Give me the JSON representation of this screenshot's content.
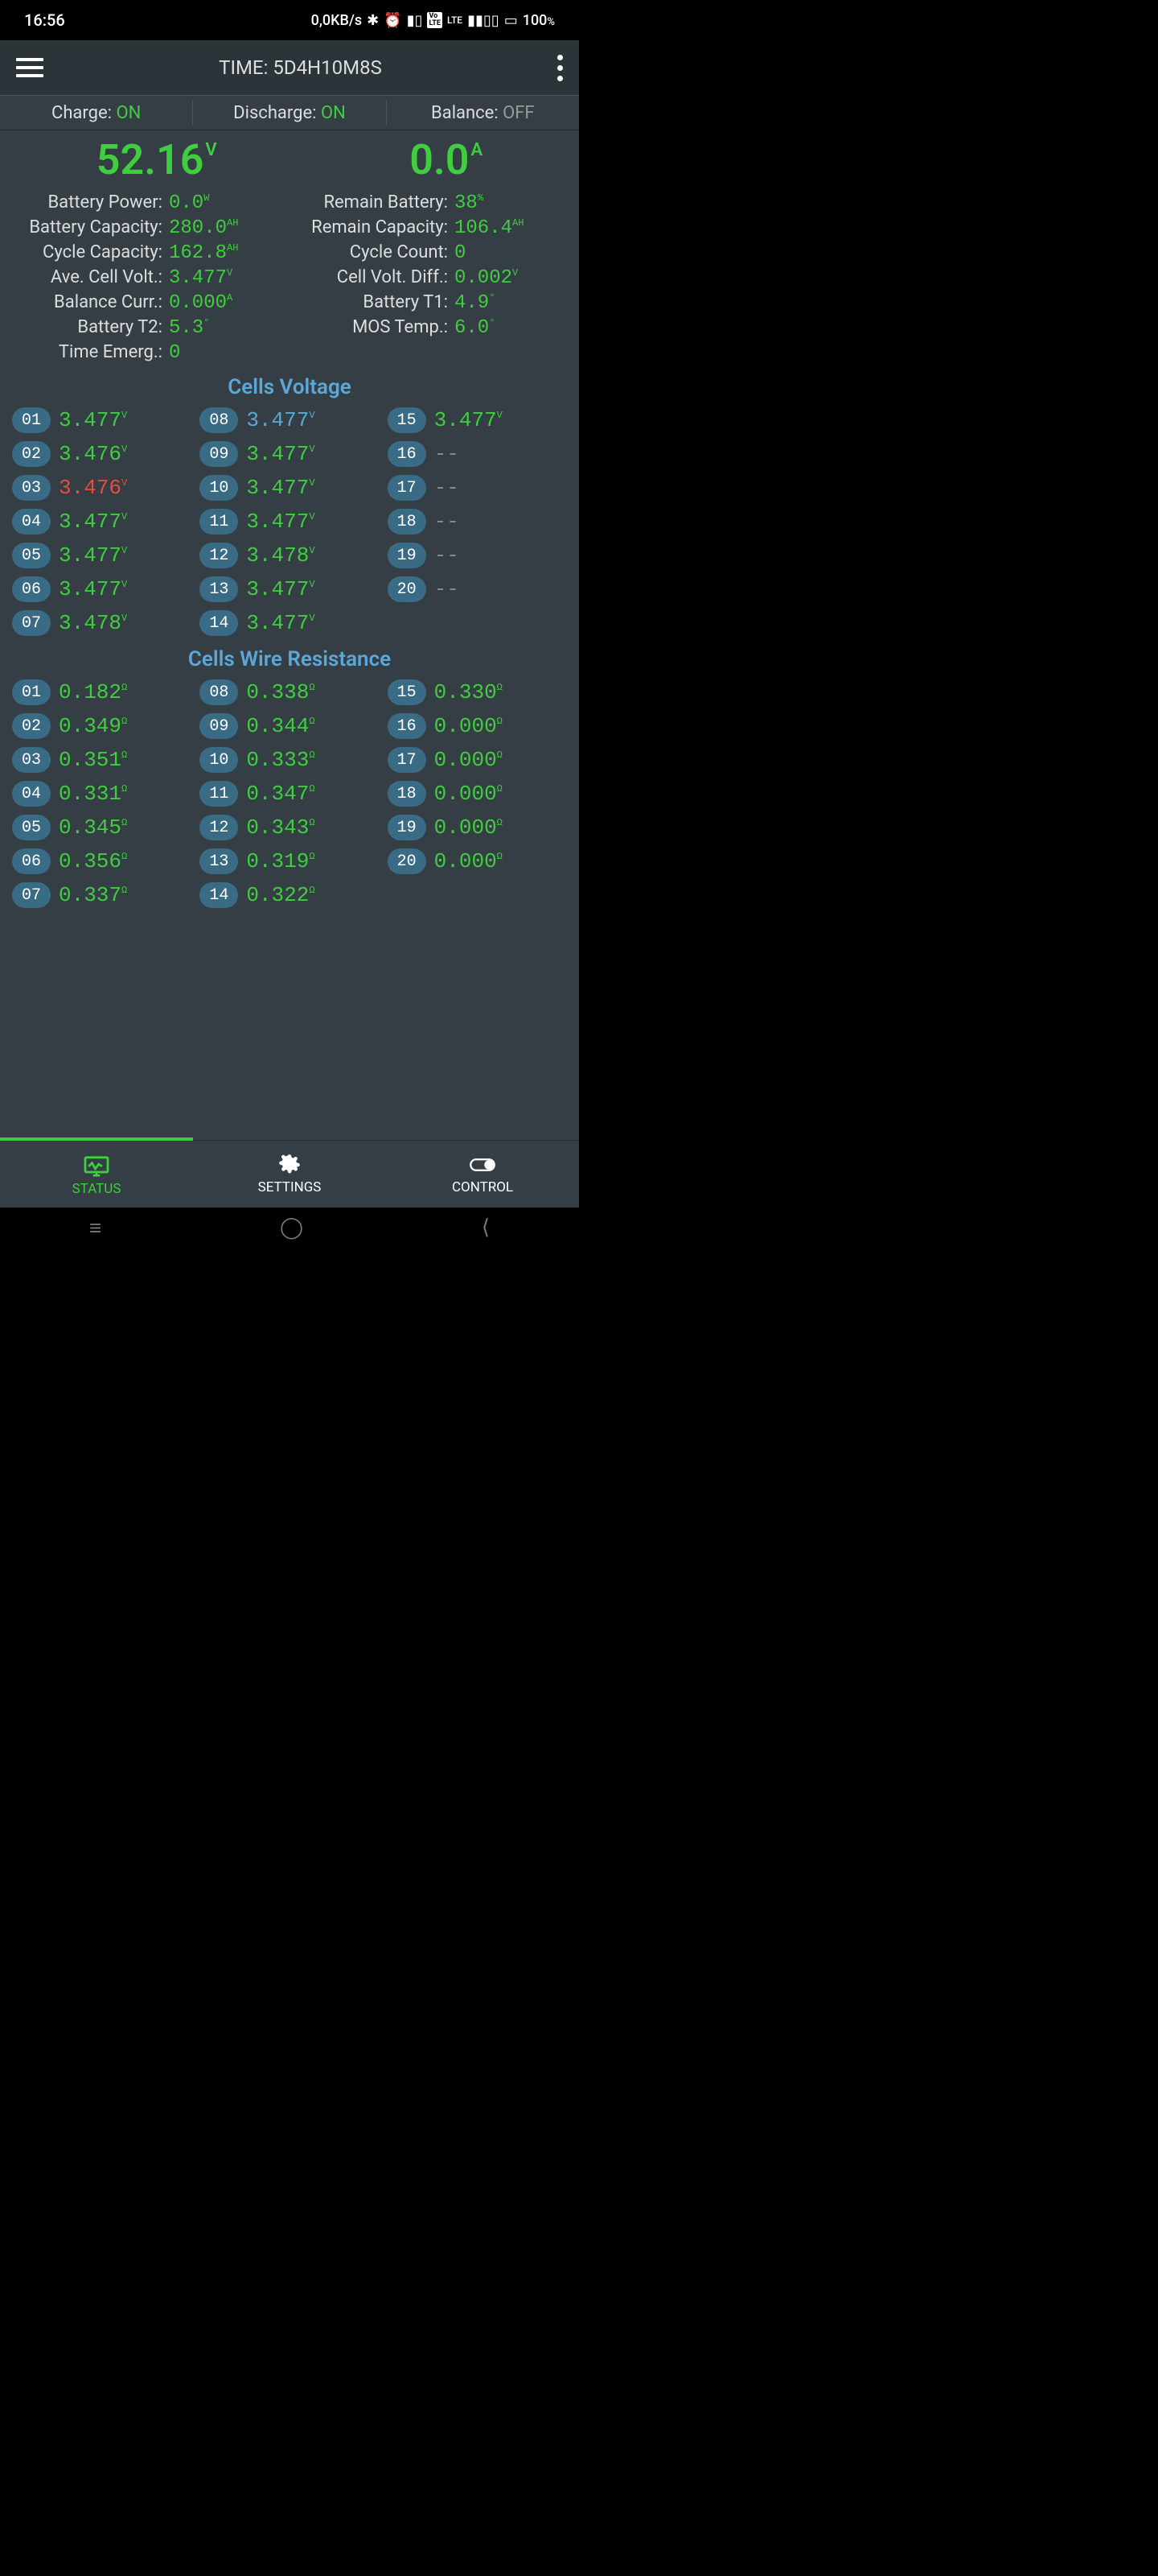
{
  "statusbar": {
    "time": "16:56",
    "speed": "0,0KB/s",
    "battery": "100"
  },
  "header": {
    "title": "TIME: 5D4H10M8S"
  },
  "status": {
    "charge_label": "Charge:",
    "charge_val": "ON",
    "discharge_label": "Discharge:",
    "discharge_val": "ON",
    "balance_label": "Balance:",
    "balance_val": "OFF"
  },
  "main": {
    "voltage": "52.16",
    "voltage_unit": "V",
    "current": "0.0",
    "current_unit": "A"
  },
  "stats": [
    {
      "label": "Battery Power:",
      "value": "0.0",
      "unit": "W"
    },
    {
      "label": "Remain Battery:",
      "value": "38",
      "unit": "%"
    },
    {
      "label": "Battery Capacity:",
      "value": "280.0",
      "unit": "AH"
    },
    {
      "label": "Remain Capacity:",
      "value": "106.4",
      "unit": "AH"
    },
    {
      "label": "Cycle Capacity:",
      "value": "162.8",
      "unit": "AH"
    },
    {
      "label": "Cycle Count:",
      "value": "0",
      "unit": ""
    },
    {
      "label": "Ave. Cell Volt.:",
      "value": "3.477",
      "unit": "V"
    },
    {
      "label": "Cell Volt. Diff.:",
      "value": "0.002",
      "unit": "V"
    },
    {
      "label": "Balance Curr.:",
      "value": "0.000",
      "unit": "A"
    },
    {
      "label": "Battery T1:",
      "value": "4.9",
      "unit": "°"
    },
    {
      "label": "Battery T2:",
      "value": "5.3",
      "unit": "°"
    },
    {
      "label": "MOS Temp.:",
      "value": "6.0",
      "unit": "°"
    },
    {
      "label": "Time Emerg.:",
      "value": "0",
      "unit": ""
    }
  ],
  "sections": {
    "voltage_title": "Cells Voltage",
    "resistance_title": "Cells Wire Resistance"
  },
  "cells_voltage": [
    {
      "n": "01",
      "v": "3.477",
      "u": "V",
      "color": "c-green"
    },
    {
      "n": "02",
      "v": "3.476",
      "u": "V",
      "color": "c-green"
    },
    {
      "n": "03",
      "v": "3.476",
      "u": "V",
      "color": "c-red"
    },
    {
      "n": "04",
      "v": "3.477",
      "u": "V",
      "color": "c-green"
    },
    {
      "n": "05",
      "v": "3.477",
      "u": "V",
      "color": "c-green"
    },
    {
      "n": "06",
      "v": "3.477",
      "u": "V",
      "color": "c-green"
    },
    {
      "n": "07",
      "v": "3.478",
      "u": "V",
      "color": "c-green"
    },
    {
      "n": "08",
      "v": "3.477",
      "u": "V",
      "color": "c-blue"
    },
    {
      "n": "09",
      "v": "3.477",
      "u": "V",
      "color": "c-green"
    },
    {
      "n": "10",
      "v": "3.477",
      "u": "V",
      "color": "c-green"
    },
    {
      "n": "11",
      "v": "3.477",
      "u": "V",
      "color": "c-green"
    },
    {
      "n": "12",
      "v": "3.478",
      "u": "V",
      "color": "c-green"
    },
    {
      "n": "13",
      "v": "3.477",
      "u": "V",
      "color": "c-green"
    },
    {
      "n": "14",
      "v": "3.477",
      "u": "V",
      "color": "c-green"
    },
    {
      "n": "15",
      "v": "3.477",
      "u": "V",
      "color": "c-green"
    },
    {
      "n": "16",
      "v": "--",
      "u": "",
      "color": "c-gray"
    },
    {
      "n": "17",
      "v": "--",
      "u": "",
      "color": "c-gray"
    },
    {
      "n": "18",
      "v": "--",
      "u": "",
      "color": "c-gray"
    },
    {
      "n": "19",
      "v": "--",
      "u": "",
      "color": "c-gray"
    },
    {
      "n": "20",
      "v": "--",
      "u": "",
      "color": "c-gray"
    }
  ],
  "cells_resistance": [
    {
      "n": "01",
      "v": "0.182",
      "u": "Ω",
      "color": "c-green"
    },
    {
      "n": "02",
      "v": "0.349",
      "u": "Ω",
      "color": "c-green"
    },
    {
      "n": "03",
      "v": "0.351",
      "u": "Ω",
      "color": "c-green"
    },
    {
      "n": "04",
      "v": "0.331",
      "u": "Ω",
      "color": "c-green"
    },
    {
      "n": "05",
      "v": "0.345",
      "u": "Ω",
      "color": "c-green"
    },
    {
      "n": "06",
      "v": "0.356",
      "u": "Ω",
      "color": "c-green"
    },
    {
      "n": "07",
      "v": "0.337",
      "u": "Ω",
      "color": "c-green"
    },
    {
      "n": "08",
      "v": "0.338",
      "u": "Ω",
      "color": "c-green"
    },
    {
      "n": "09",
      "v": "0.344",
      "u": "Ω",
      "color": "c-green"
    },
    {
      "n": "10",
      "v": "0.333",
      "u": "Ω",
      "color": "c-green"
    },
    {
      "n": "11",
      "v": "0.347",
      "u": "Ω",
      "color": "c-green"
    },
    {
      "n": "12",
      "v": "0.343",
      "u": "Ω",
      "color": "c-green"
    },
    {
      "n": "13",
      "v": "0.319",
      "u": "Ω",
      "color": "c-green"
    },
    {
      "n": "14",
      "v": "0.322",
      "u": "Ω",
      "color": "c-green"
    },
    {
      "n": "15",
      "v": "0.330",
      "u": "Ω",
      "color": "c-green"
    },
    {
      "n": "16",
      "v": "0.000",
      "u": "Ω",
      "color": "c-green"
    },
    {
      "n": "17",
      "v": "0.000",
      "u": "Ω",
      "color": "c-green"
    },
    {
      "n": "18",
      "v": "0.000",
      "u": "Ω",
      "color": "c-green"
    },
    {
      "n": "19",
      "v": "0.000",
      "u": "Ω",
      "color": "c-green"
    },
    {
      "n": "20",
      "v": "0.000",
      "u": "Ω",
      "color": "c-green"
    }
  ],
  "nav": {
    "status": "STATUS",
    "settings": "SETTINGS",
    "control": "CONTROL"
  },
  "colors": {
    "green": "#3fce3f",
    "red": "#e74c3c",
    "blue": "#5ba8d8",
    "bg": "#343e44",
    "badge": "#3a6b85"
  }
}
